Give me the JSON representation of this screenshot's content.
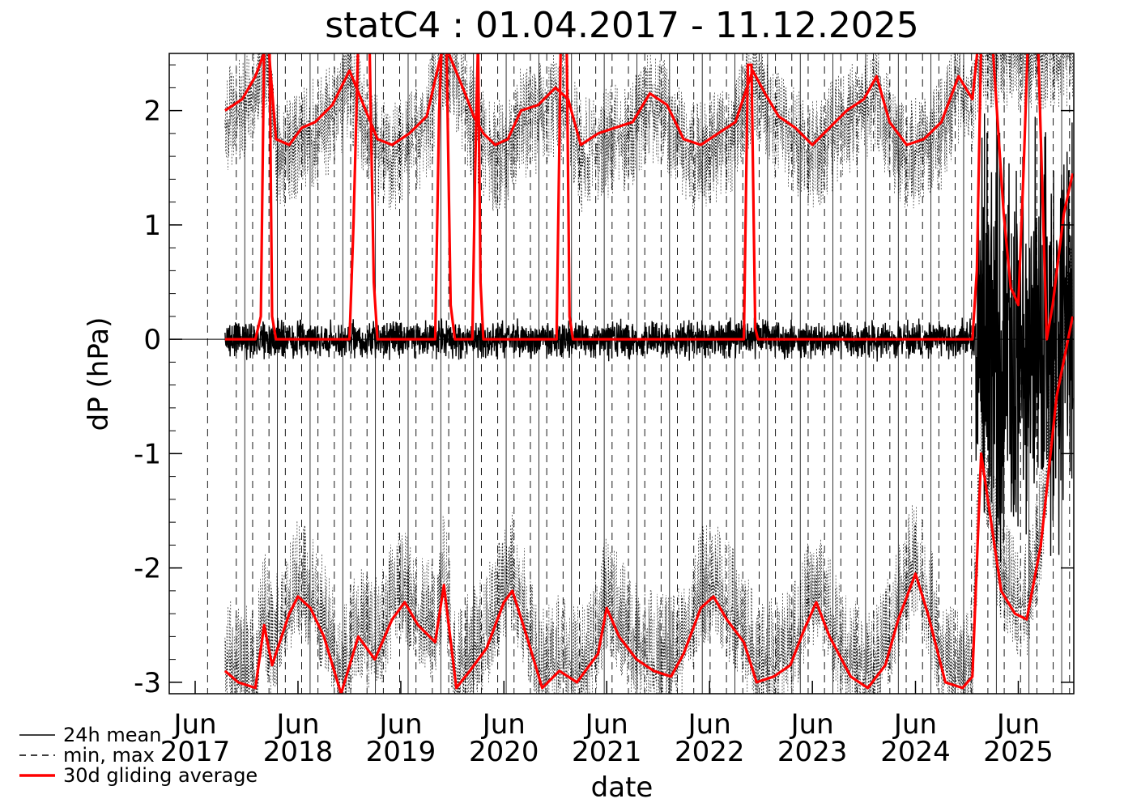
{
  "chart_data": {
    "type": "line",
    "title": "statC4 : 01.04.2017 - 11.12.2025",
    "xlabel": "date",
    "ylabel": "dP (hPa)",
    "xlim": [
      "2017-03-01",
      "2025-12-15"
    ],
    "ylim": [
      -3.1,
      2.5
    ],
    "yticks": [
      -3,
      -2,
      -1,
      0,
      1,
      2
    ],
    "xticks": [
      {
        "date": "2017-06-01",
        "month": "Jun",
        "year": "2017"
      },
      {
        "date": "2018-06-01",
        "month": "Jun",
        "year": "2018"
      },
      {
        "date": "2019-06-01",
        "month": "Jun",
        "year": "2019"
      },
      {
        "date": "2020-06-01",
        "month": "Jun",
        "year": "2020"
      },
      {
        "date": "2021-06-01",
        "month": "Jun",
        "year": "2021"
      },
      {
        "date": "2022-06-01",
        "month": "Jun",
        "year": "2022"
      },
      {
        "date": "2023-06-01",
        "month": "Jun",
        "year": "2023"
      },
      {
        "date": "2024-06-01",
        "month": "Jun",
        "year": "2024"
      },
      {
        "date": "2025-06-01",
        "month": "Jun",
        "year": "2025"
      }
    ],
    "reference_line_y": 0,
    "legend": [
      {
        "label": "24h mean",
        "style": "solid",
        "color": "#000000"
      },
      {
        "label": "min, max",
        "style": "dashed",
        "color": "#000000"
      },
      {
        "label": "30d gliding average",
        "style": "solid",
        "color": "#ff0000"
      }
    ],
    "legend_position": "bottom-left",
    "data_start": "2017-09-15",
    "series": [
      {
        "name": "30d gliding average",
        "color": "#ff0000",
        "points": [
          [
            "2017-09-15",
            0.0
          ],
          [
            "2018-01-01",
            0.0
          ],
          [
            "2018-01-20",
            0.2
          ],
          [
            "2018-02-01",
            2.6
          ],
          [
            "2018-02-20",
            2.6
          ],
          [
            "2018-03-01",
            0.2
          ],
          [
            "2018-03-15",
            0.0
          ],
          [
            "2018-12-01",
            0.0
          ],
          [
            "2018-12-15",
            1.0
          ],
          [
            "2019-01-01",
            2.6
          ],
          [
            "2019-02-10",
            2.6
          ],
          [
            "2019-02-25",
            0.5
          ],
          [
            "2019-03-10",
            0.0
          ],
          [
            "2019-10-01",
            0.0
          ],
          [
            "2019-10-15",
            2.0
          ],
          [
            "2019-10-25",
            2.6
          ],
          [
            "2019-11-10",
            2.6
          ],
          [
            "2019-11-25",
            0.3
          ],
          [
            "2019-12-10",
            0.0
          ],
          [
            "2020-02-10",
            0.0
          ],
          [
            "2020-02-20",
            1.5
          ],
          [
            "2020-03-01",
            2.6
          ],
          [
            "2020-03-10",
            0.5
          ],
          [
            "2020-03-20",
            0.0
          ],
          [
            "2020-12-05",
            0.0
          ],
          [
            "2020-12-20",
            2.6
          ],
          [
            "2021-01-10",
            2.6
          ],
          [
            "2021-01-20",
            0.2
          ],
          [
            "2021-02-01",
            0.0
          ],
          [
            "2022-10-01",
            0.0
          ],
          [
            "2022-10-15",
            2.4
          ],
          [
            "2022-10-28",
            2.4
          ],
          [
            "2022-11-10",
            0.1
          ],
          [
            "2022-11-20",
            0.0
          ],
          [
            "2024-12-20",
            0.0
          ],
          [
            "2025-01-05",
            0.6
          ],
          [
            "2025-01-20",
            2.6
          ],
          [
            "2025-03-01",
            2.6
          ],
          [
            "2025-04-10",
            1.1
          ],
          [
            "2025-05-05",
            0.45
          ],
          [
            "2025-05-15",
            0.4
          ],
          [
            "2025-06-01",
            0.3
          ],
          [
            "2025-06-20",
            1.5
          ],
          [
            "2025-07-05",
            2.6
          ],
          [
            "2025-08-10",
            2.6
          ],
          [
            "2025-09-10",
            0.0
          ],
          [
            "2025-10-01",
            0.3
          ],
          [
            "2025-11-10",
            1.1
          ],
          [
            "2025-12-11",
            1.45
          ]
        ]
      },
      {
        "name": "30d gliding average (max)",
        "color": "#ff0000",
        "points": [
          [
            "2017-09-15",
            2.0
          ],
          [
            "2017-11-15",
            2.1
          ],
          [
            "2018-01-01",
            2.3
          ],
          [
            "2018-02-15",
            2.6
          ],
          [
            "2018-03-15",
            1.75
          ],
          [
            "2018-05-01",
            1.7
          ],
          [
            "2018-06-15",
            1.85
          ],
          [
            "2018-08-01",
            1.9
          ],
          [
            "2018-10-01",
            2.05
          ],
          [
            "2018-12-01",
            2.35
          ],
          [
            "2019-03-10",
            1.75
          ],
          [
            "2019-05-01",
            1.7
          ],
          [
            "2019-07-01",
            1.8
          ],
          [
            "2019-09-01",
            1.95
          ],
          [
            "2019-11-01",
            2.6
          ],
          [
            "2020-01-15",
            2.15
          ],
          [
            "2020-02-15",
            1.95
          ],
          [
            "2020-03-20",
            1.8
          ],
          [
            "2020-05-01",
            1.7
          ],
          [
            "2020-06-15",
            1.75
          ],
          [
            "2020-08-01",
            2.0
          ],
          [
            "2020-10-01",
            2.05
          ],
          [
            "2020-12-01",
            2.2
          ],
          [
            "2021-01-15",
            2.1
          ],
          [
            "2021-03-01",
            1.7
          ],
          [
            "2021-05-01",
            1.8
          ],
          [
            "2021-07-01",
            1.85
          ],
          [
            "2021-09-01",
            1.9
          ],
          [
            "2021-11-01",
            2.15
          ],
          [
            "2022-01-01",
            2.05
          ],
          [
            "2022-03-01",
            1.75
          ],
          [
            "2022-05-01",
            1.7
          ],
          [
            "2022-07-01",
            1.8
          ],
          [
            "2022-09-01",
            1.9
          ],
          [
            "2022-11-01",
            2.35
          ],
          [
            "2022-12-15",
            2.15
          ],
          [
            "2023-02-01",
            1.95
          ],
          [
            "2023-04-01",
            1.85
          ],
          [
            "2023-06-01",
            1.7
          ],
          [
            "2023-08-01",
            1.85
          ],
          [
            "2023-10-01",
            2.0
          ],
          [
            "2023-12-01",
            2.1
          ],
          [
            "2024-01-15",
            2.3
          ],
          [
            "2024-03-01",
            1.9
          ],
          [
            "2024-05-01",
            1.7
          ],
          [
            "2024-07-01",
            1.75
          ],
          [
            "2024-09-01",
            1.9
          ],
          [
            "2024-11-01",
            2.3
          ],
          [
            "2024-12-20",
            2.1
          ],
          [
            "2025-01-10",
            2.6
          ],
          [
            "2025-03-01",
            2.6
          ],
          [
            "2025-12-11",
            2.6
          ]
        ]
      },
      {
        "name": "30d gliding average (min)",
        "color": "#ff0000",
        "points": [
          [
            "2017-09-15",
            -2.9
          ],
          [
            "2017-11-01",
            -3.0
          ],
          [
            "2018-01-01",
            -3.05
          ],
          [
            "2018-02-01",
            -2.5
          ],
          [
            "2018-03-01",
            -2.85
          ],
          [
            "2018-05-01",
            -2.4
          ],
          [
            "2018-06-01",
            -2.25
          ],
          [
            "2018-07-15",
            -2.35
          ],
          [
            "2018-09-01",
            -2.6
          ],
          [
            "2018-11-01",
            -3.1
          ],
          [
            "2019-01-01",
            -2.6
          ],
          [
            "2019-03-01",
            -2.8
          ],
          [
            "2019-05-01",
            -2.45
          ],
          [
            "2019-06-15",
            -2.3
          ],
          [
            "2019-08-01",
            -2.5
          ],
          [
            "2019-10-01",
            -2.65
          ],
          [
            "2019-11-01",
            -2.15
          ],
          [
            "2019-12-15",
            -3.05
          ],
          [
            "2020-02-01",
            -2.9
          ],
          [
            "2020-04-01",
            -2.7
          ],
          [
            "2020-06-01",
            -2.3
          ],
          [
            "2020-07-01",
            -2.2
          ],
          [
            "2020-08-15",
            -2.55
          ],
          [
            "2020-10-15",
            -3.05
          ],
          [
            "2020-12-15",
            -2.9
          ],
          [
            "2021-02-15",
            -3.0
          ],
          [
            "2021-05-01",
            -2.75
          ],
          [
            "2021-06-01",
            -2.35
          ],
          [
            "2021-07-15",
            -2.6
          ],
          [
            "2021-09-15",
            -2.8
          ],
          [
            "2021-11-15",
            -2.9
          ],
          [
            "2022-01-15",
            -2.95
          ],
          [
            "2022-03-01",
            -2.75
          ],
          [
            "2022-05-01",
            -2.35
          ],
          [
            "2022-06-15",
            -2.25
          ],
          [
            "2022-08-01",
            -2.45
          ],
          [
            "2022-10-01",
            -2.65
          ],
          [
            "2022-11-15",
            -3.0
          ],
          [
            "2023-01-15",
            -2.95
          ],
          [
            "2023-03-15",
            -2.85
          ],
          [
            "2023-05-01",
            -2.55
          ],
          [
            "2023-06-15",
            -2.3
          ],
          [
            "2023-08-01",
            -2.6
          ],
          [
            "2023-10-15",
            -2.95
          ],
          [
            "2023-12-15",
            -3.05
          ],
          [
            "2024-02-15",
            -2.85
          ],
          [
            "2024-04-01",
            -2.45
          ],
          [
            "2024-06-01",
            -2.05
          ],
          [
            "2024-07-15",
            -2.4
          ],
          [
            "2024-09-15",
            -3.0
          ],
          [
            "2024-11-15",
            -3.05
          ],
          [
            "2024-12-20",
            -2.95
          ],
          [
            "2025-01-20",
            -1.0
          ],
          [
            "2025-04-01",
            -2.2
          ],
          [
            "2025-05-20",
            -2.4
          ],
          [
            "2025-07-01",
            -2.45
          ],
          [
            "2025-08-20",
            -1.8
          ],
          [
            "2025-10-15",
            -0.5
          ],
          [
            "2025-12-11",
            0.2
          ]
        ]
      }
    ]
  }
}
